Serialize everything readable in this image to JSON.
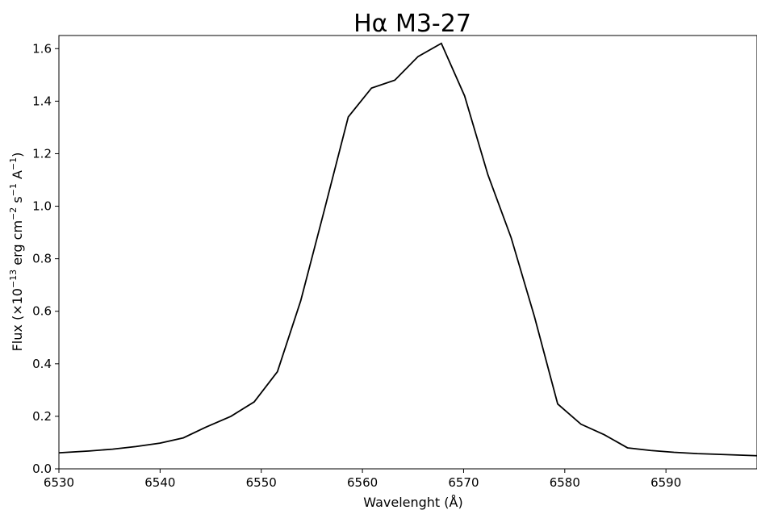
{
  "chart_data": {
    "type": "line",
    "title": "Hα M3-27",
    "xlabel": "Wavelenght (Å)",
    "ylabel_parts": {
      "prefix": "Flux (×10",
      "exp1": "−13",
      "mid1": " erg cm",
      "exp2": "−2",
      "mid2": " s",
      "exp3": "−1",
      "mid3": " A",
      "exp4": "−1",
      "suffix": ")"
    },
    "xlim": [
      6530,
      6599
    ],
    "ylim": [
      0.0,
      1.65
    ],
    "xticks": [
      6530,
      6540,
      6550,
      6560,
      6570,
      6580,
      6590
    ],
    "yticks": [
      0.0,
      0.2,
      0.4,
      0.6,
      0.8,
      1.0,
      1.2,
      1.4,
      1.6
    ],
    "grid": false,
    "line_color": "#000000",
    "series": [
      {
        "x": [
          6530,
          6533,
          6535.3,
          6537.6,
          6540,
          6542.3,
          6544.6,
          6547,
          6549.3,
          6551.6,
          6553.9,
          6556.2,
          6558.6,
          6560.9,
          6563.2,
          6565.5,
          6567.8,
          6570.1,
          6572.4,
          6574.7,
          6577,
          6579.3,
          6581.6,
          6583.9,
          6586.2,
          6588.5,
          6590.8,
          6593.1,
          6595.4,
          6599
        ],
        "y": [
          0.061,
          0.068,
          0.075,
          0.085,
          0.098,
          0.118,
          0.16,
          0.2,
          0.255,
          0.37,
          0.64,
          0.98,
          1.34,
          1.45,
          1.48,
          1.57,
          1.62,
          1.42,
          1.12,
          0.88,
          0.58,
          0.247,
          0.17,
          0.13,
          0.08,
          0.07,
          0.063,
          0.058,
          0.055,
          0.05
        ]
      }
    ]
  }
}
